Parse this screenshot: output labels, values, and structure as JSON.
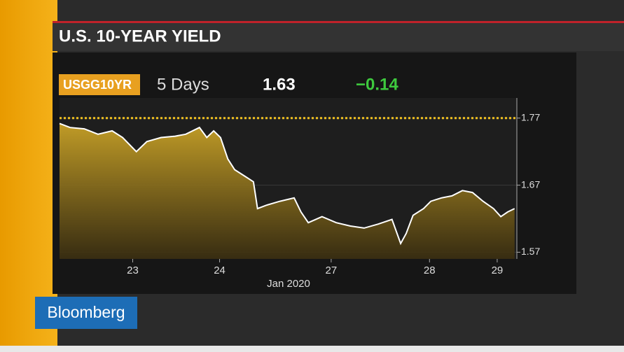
{
  "chart_data": {
    "type": "line",
    "title": "U.S. 10-YEAR YIELD",
    "ticker": "USGG10YR",
    "period": "5 Days",
    "last": "1.63",
    "change": "−0.14",
    "x_label": "Jan 2020",
    "x": [
      0,
      2.3,
      5.4,
      8.4,
      11.5,
      13.8,
      16.8,
      19.1,
      22.2,
      25.3,
      27.6,
      30.6,
      32.2,
      33.7,
      35.2,
      36.8,
      38.3,
      40.6,
      42.4,
      43.3,
      45.2,
      48.2,
      51.3,
      52.8,
      54.4,
      57.4,
      60.5,
      63.6,
      66.6,
      69.7,
      72.7,
      74.6,
      75.8,
      77.3,
      79.6,
      81.2,
      83.5,
      85.8,
      88.1,
      90.3,
      92.6,
      94.9,
      96.5,
      98.0,
      99.5
    ],
    "series": [
      {
        "color": "#ffffff",
        "values": [
          1.762,
          1.756,
          1.754,
          1.746,
          1.751,
          1.741,
          1.72,
          1.735,
          1.741,
          1.743,
          1.746,
          1.756,
          1.741,
          1.751,
          1.741,
          1.709,
          1.693,
          1.683,
          1.675,
          1.635,
          1.64,
          1.646,
          1.651,
          1.63,
          1.614,
          1.623,
          1.614,
          1.609,
          1.606,
          1.612,
          1.619,
          1.583,
          1.598,
          1.625,
          1.635,
          1.646,
          1.651,
          1.654,
          1.662,
          1.659,
          1.646,
          1.635,
          1.623,
          1.63,
          1.635
        ]
      }
    ],
    "area_color": "#c9a227",
    "reference_line": 1.77,
    "xlim": [
      0,
      100
    ],
    "xticks": [
      {
        "value": 16,
        "label": "23"
      },
      {
        "value": 35,
        "label": "24"
      },
      {
        "value": 59.4,
        "label": "27"
      },
      {
        "value": 80.9,
        "label": "28"
      },
      {
        "value": 95.7,
        "label": "29"
      }
    ],
    "ylim": [
      1.56,
      1.8
    ],
    "yticks": [
      1.57,
      1.67,
      1.77
    ]
  },
  "brand": "Bloomberg"
}
